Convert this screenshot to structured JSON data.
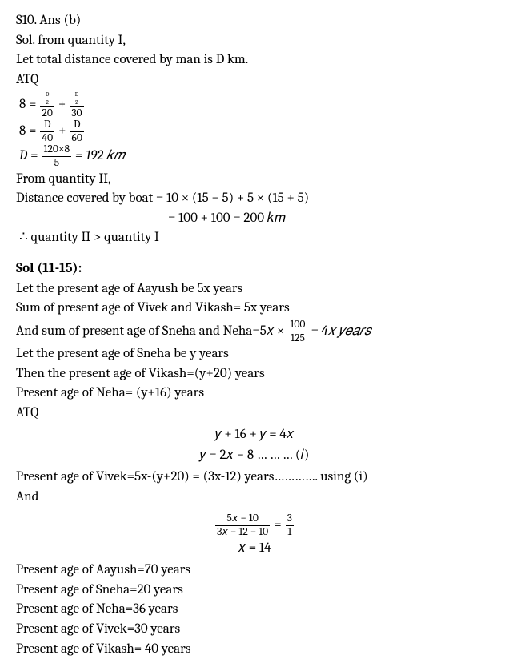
{
  "s10": {
    "heading": "S10. Ans (b)",
    "sol_from_q1": "Sol. from quantity I,",
    "let_dist": " Let total distance covered by man is D km.",
    "atq": "ATQ",
    "eq1_lhs": "8 =",
    "eq1_f1_num_top": "D",
    "eq1_f1_num_bot": "2",
    "eq1_f1_den": "20",
    "plus": "+",
    "eq1_f2_num_top": "D",
    "eq1_f2_num_bot": "2",
    "eq1_f2_den": "30",
    "eq2_lhs": "8 =",
    "eq2_f1_num": "D",
    "eq2_f1_den": "40",
    "eq2_f2_num": "D",
    "eq2_f2_den": "60",
    "eq3_lhs": "D",
    "eq3_eq": "=",
    "eq3_num": "120×8",
    "eq3_den": "5",
    "eq3_result": "= 192 𝑘𝑚",
    "from_q2": "From quantity II,",
    "boat_line1": "Distance covered by boat = 10 × (15 − 5) + 5 × (15 + 5)",
    "boat_line2": "= 100 + 100 = 200 𝑘𝑚",
    "conclusion": "∴ quantity II > quantity I"
  },
  "s11": {
    "heading": "Sol (11-15):",
    "l1": "Let the present age of Aayush be 5x years",
    "l2": "Sum of present age of Vivek and Vikash= 5x years",
    "l3a": "And sum of present age of Sneha and Neha=5𝑥 ×",
    "l3_num": "100",
    "l3_den": "125",
    "l3b": "= 4𝑥 𝑦𝑒𝑎𝑟𝑠",
    "l4": "Let the present age of Sneha be y years",
    "l5": "Then the present age of Vikash=(y+20) years",
    "l6": "Present age of Neha= (y+16) years",
    "l7": "ATQ",
    "eqA": "𝑦 + 16 + 𝑦 = 4𝑥",
    "eqB": "𝑦 = 2𝑥 − 8 … … … (𝑖)",
    "l8": "Present age of Vivek=5x-(y+20) = (3x-12) years…………. using (i)",
    "l9": "And",
    "eqC_num": "5𝑥 − 10",
    "eqC_den": "3𝑥 − 12 − 10",
    "eqC_eq": "=",
    "eqC_r_num": "3",
    "eqC_r_den": "1",
    "eqD": "𝑥 = 14",
    "r1": "Present age of Aayush=70 years",
    "r2": "Present age of Sneha=20 years",
    "r3": "Present age of Neha=36 years",
    "r4": "Present age of Vivek=30 years",
    "r5": "Present age of Vikash= 40 years"
  }
}
